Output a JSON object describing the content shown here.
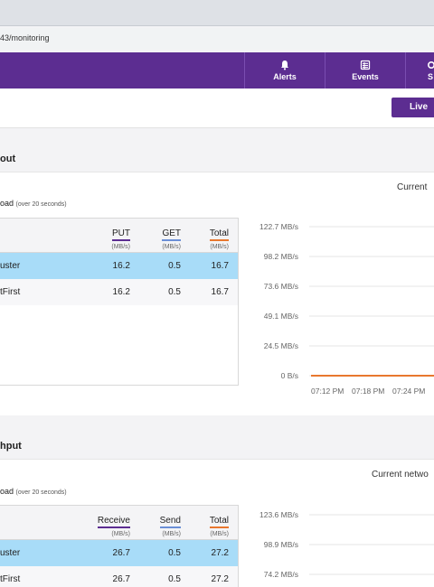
{
  "browser": {
    "url": "43/monitoring"
  },
  "nav": {
    "items": [
      {
        "label": "Alerts",
        "icon": "bell-icon"
      },
      {
        "label": "Events",
        "icon": "events-icon"
      },
      {
        "label": "S",
        "icon": "settings-icon"
      }
    ]
  },
  "toolbar": {
    "live_label": "Live"
  },
  "throughput": {
    "title": "out",
    "subtitle": "oad",
    "subtitle_note": "(over 20 seconds)",
    "current_label": "Current",
    "columns": [
      {
        "name": "PUT",
        "unit": "(MB/s)",
        "color": "#5c2d91"
      },
      {
        "name": "GET",
        "unit": "(MB/s)",
        "color": "#6b8fd6"
      },
      {
        "name": "Total",
        "unit": "(MB/s)",
        "color": "#e8772e"
      }
    ],
    "rows": [
      {
        "name": "uster",
        "values": [
          "16.2",
          "0.5",
          "16.7"
        ],
        "selected": true
      },
      {
        "name": "tFirst",
        "values": [
          "16.2",
          "0.5",
          "16.7"
        ],
        "selected": false
      }
    ]
  },
  "network": {
    "title": "hput",
    "subtitle": "oad",
    "subtitle_note": "(over 20 seconds)",
    "current_label": "Current netwo",
    "columns": [
      {
        "name": "Receive",
        "unit": "(MB/s)",
        "color": "#5c2d91"
      },
      {
        "name": "Send",
        "unit": "(MB/s)",
        "color": "#6b8fd6"
      },
      {
        "name": "Total",
        "unit": "(MB/s)",
        "color": "#e8772e"
      }
    ],
    "rows": [
      {
        "name": "uster",
        "values": [
          "26.7",
          "0.5",
          "27.2"
        ],
        "selected": true
      },
      {
        "name": "tFirst",
        "values": [
          "26.7",
          "0.5",
          "27.2"
        ],
        "selected": false
      }
    ]
  },
  "chart_data": [
    {
      "type": "line",
      "y_ticks": [
        "122.7 MB/s",
        "98.2 MB/s",
        "73.6 MB/s",
        "49.1 MB/s",
        "24.5 MB/s",
        "0 B/s"
      ],
      "x_ticks": [
        "07:12 PM",
        "07:18 PM",
        "07:24 PM"
      ],
      "ylim": [
        0,
        122.7
      ],
      "series": [
        {
          "color": "#e8772e",
          "x": [
            "07:12 PM",
            "07:24 PM"
          ],
          "values": [
            0,
            0
          ]
        }
      ],
      "grid": true
    },
    {
      "type": "line",
      "y_ticks": [
        "123.6 MB/s",
        "98.9 MB/s",
        "74.2 MB/s"
      ],
      "x_ticks": [],
      "ylim": [
        0,
        123.6
      ],
      "series": [],
      "grid": true
    }
  ]
}
